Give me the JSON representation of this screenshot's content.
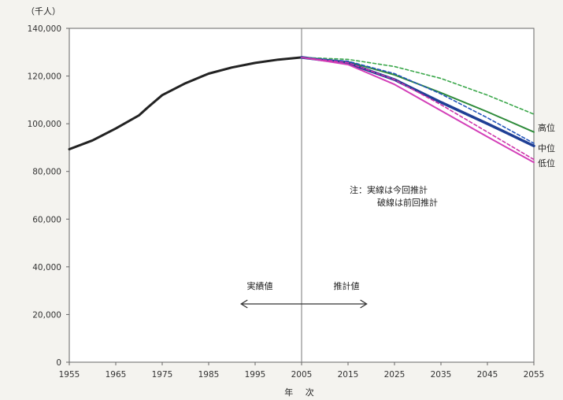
{
  "chart_data": {
    "type": "line",
    "y_unit_label": "（千人）",
    "xlabel": "年 次",
    "xlim": [
      1955,
      2055
    ],
    "ylim": [
      0,
      140000
    ],
    "x_ticks": [
      "1955",
      "1965",
      "1975",
      "1985",
      "1995",
      "2005",
      "2015",
      "2025",
      "2035",
      "2045",
      "2055"
    ],
    "y_ticks": [
      "0",
      "20,000",
      "40,000",
      "60,000",
      "80,000",
      "100,000",
      "120,000",
      "140,000"
    ],
    "grid": false,
    "divider_year": 2005,
    "series": [
      {
        "name": "",
        "style": "solid",
        "color": "#222222",
        "x": [
          1955,
          1960,
          1965,
          1970,
          1972,
          1975,
          1980,
          1985,
          1990,
          1995,
          2000,
          2005
        ],
        "y": [
          89300,
          93000,
          98000,
          103500,
          107000,
          112000,
          117000,
          121000,
          123600,
          125500,
          126900,
          127800
        ]
      },
      {
        "name": "高位",
        "style": "solid",
        "color": "#2e8b3a",
        "x": [
          2005,
          2015,
          2025,
          2035,
          2045,
          2055
        ],
        "y": [
          127800,
          126000,
          120500,
          113000,
          105000,
          96500
        ]
      },
      {
        "name": "中位",
        "style": "solid",
        "color": "#1f3f95",
        "x": [
          2005,
          2015,
          2025,
          2035,
          2045,
          2055
        ],
        "y": [
          127800,
          125400,
          118500,
          109000,
          100000,
          90700
        ]
      },
      {
        "name": "低位",
        "style": "solid",
        "color": "#d33fb8",
        "x": [
          2005,
          2015,
          2025,
          2035,
          2045,
          2055
        ],
        "y": [
          127800,
          124800,
          116500,
          105500,
          94500,
          83800
        ]
      },
      {
        "name": "",
        "style": "dashed",
        "color": "#3aa74a",
        "x": [
          2005,
          2015,
          2025,
          2035,
          2045,
          2055
        ],
        "y": [
          127800,
          127000,
          124000,
          119000,
          112000,
          104000
        ]
      },
      {
        "name": "",
        "style": "dashed",
        "color": "#2255bb",
        "x": [
          2005,
          2015,
          2025,
          2035,
          2045,
          2055
        ],
        "y": [
          127800,
          126200,
          121000,
          112500,
          102500,
          91800
        ]
      },
      {
        "name": "",
        "style": "dashed",
        "color": "#cc33aa",
        "x": [
          2005,
          2015,
          2025,
          2035,
          2045,
          2055
        ],
        "y": [
          127800,
          125600,
          118500,
          108000,
          96500,
          85000
        ]
      }
    ],
    "legend_labels": [
      "高位",
      "中位",
      "低位"
    ],
    "note_line1": "注：実線は今回推計",
    "note_line2": "破線は前回推計",
    "actual_label": "実績値",
    "projection_label": "推計値",
    "arrow_range": [
      1992,
      2019
    ]
  }
}
